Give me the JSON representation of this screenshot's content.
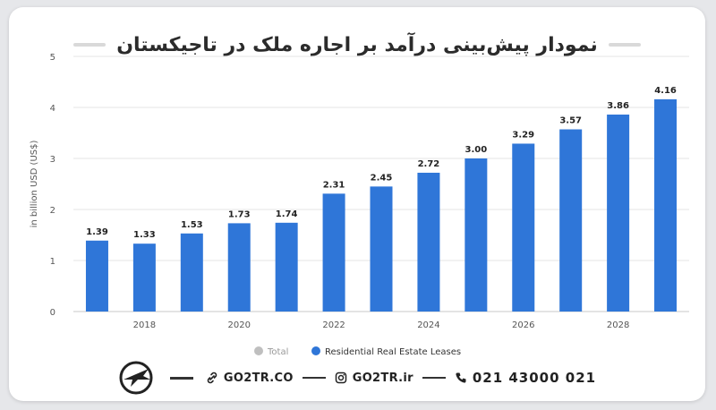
{
  "title": "نمودار پیش‌بینی درآمد بر اجاره ملک در تاجیکستان",
  "footer": {
    "website": "GO2TR.CO",
    "instagram": "GO2TR.ir",
    "phone": "021 43000 021"
  },
  "colors": {
    "bar": "#2f76d8",
    "legend_total": "#bfbfbf",
    "legend_series": "#2f76d8",
    "axis_text": "#555555"
  },
  "chart_data": {
    "type": "bar",
    "categories": [
      "2017",
      "2018",
      "2019",
      "2020",
      "2021",
      "2022",
      "2023",
      "2024",
      "2025",
      "2026",
      "2027",
      "2028",
      "2029"
    ],
    "x_tick_labels": [
      "2018",
      "2020",
      "2022",
      "2024",
      "2026",
      "2028"
    ],
    "series": [
      {
        "name": "Residential Real Estate Leases",
        "values": [
          1.39,
          1.33,
          1.53,
          1.73,
          1.74,
          2.31,
          2.45,
          2.72,
          3.0,
          3.29,
          3.57,
          3.86,
          4.16
        ],
        "value_labels": [
          "1.39",
          "1.33",
          "1.53",
          "1.73",
          "1.74",
          "2.31",
          "2.45",
          "2.72",
          "3.00",
          "3.29",
          "3.57",
          "3.86",
          "4.16"
        ]
      }
    ],
    "legend": [
      "Total",
      "Residential Real Estate Leases"
    ],
    "legend_placement": "bottom-center",
    "ylabel": "in billion USD (US$)",
    "ylim": [
      0,
      5
    ],
    "y_ticks": [
      "0",
      "1",
      "2",
      "3",
      "4",
      "5"
    ],
    "grid": true
  }
}
